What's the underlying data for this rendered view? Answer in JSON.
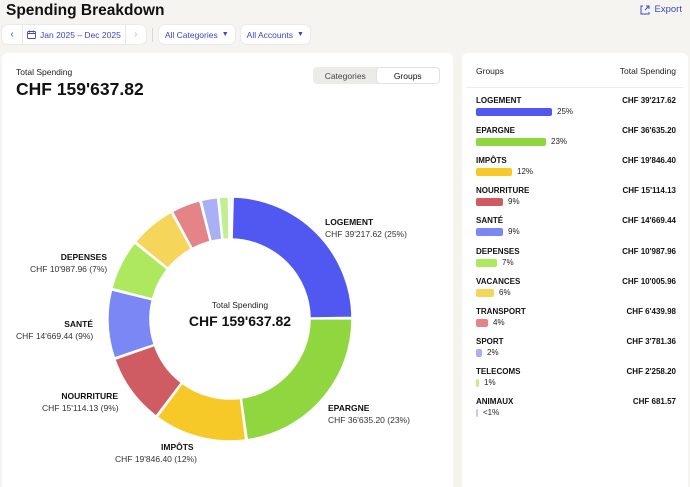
{
  "header": {
    "title": "Spending Breakdown",
    "export_label": "Export"
  },
  "filters": {
    "date_range": "Jan 2025 – Dec 2025",
    "categories": "All Categories",
    "accounts": "All Accounts"
  },
  "summary": {
    "total_label": "Total Spending",
    "total_value": "CHF 159'637.82",
    "toggle_categories": "Categories",
    "toggle_groups": "Groups",
    "active_toggle": "Groups"
  },
  "chart_data": {
    "type": "pie",
    "center_label": "Total Spending",
    "center_value": "CHF 159'637.82",
    "categories": [
      "LOGEMENT",
      "EPARGNE",
      "IMPÔTS",
      "NOURRITURE",
      "SANTÉ",
      "DEPENSES",
      "VACANCES",
      "TRANSPORT",
      "SPORT",
      "TELECOMS",
      "ANIMAUX"
    ],
    "values": [
      39217.62,
      36635.2,
      19846.4,
      15114.13,
      14669.44,
      10987.96,
      10005.96,
      6439.98,
      3781.36,
      2258.2,
      681.57
    ],
    "colors": [
      "#5158f2",
      "#8fd63f",
      "#f6c928",
      "#cf5b63",
      "#7a87f5",
      "#aee85f",
      "#f6d65a",
      "#e58486",
      "#a9b0f5",
      "#c1ef8f",
      "#c9c9ee"
    ],
    "labels": [
      {
        "name": "LOGEMENT",
        "detail": "CHF 39'217.62 (25%)"
      },
      {
        "name": "EPARGNE",
        "detail": "CHF 36'635.20 (23%)"
      },
      {
        "name": "IMPÔTS",
        "detail": "CHF 19'846.40 (12%)"
      },
      {
        "name": "NOURRITURE",
        "detail": "CHF 15'114.13 (9%)"
      },
      {
        "name": "SANTÉ",
        "detail": "CHF 14'669.44 (9%)"
      },
      {
        "name": "DEPENSES",
        "detail": "CHF 10'987.96 (7%)"
      }
    ]
  },
  "groups_table": {
    "header_group": "Groups",
    "header_total": "Total Spending",
    "rows": [
      {
        "name": "LOGEMENT",
        "amount": "CHF 39'217.62",
        "pct": "25%",
        "share": 0.25,
        "color": "#5158f2"
      },
      {
        "name": "EPARGNE",
        "amount": "CHF 36'635.20",
        "pct": "23%",
        "share": 0.23,
        "color": "#8fd63f"
      },
      {
        "name": "IMPÔTS",
        "amount": "CHF 19'846.40",
        "pct": "12%",
        "share": 0.12,
        "color": "#f6c928"
      },
      {
        "name": "NOURRITURE",
        "amount": "CHF 15'114.13",
        "pct": "9%",
        "share": 0.09,
        "color": "#cf5b63"
      },
      {
        "name": "SANTÉ",
        "amount": "CHF 14'669.44",
        "pct": "9%",
        "share": 0.09,
        "color": "#7a87f5"
      },
      {
        "name": "DEPENSES",
        "amount": "CHF 10'987.96",
        "pct": "7%",
        "share": 0.07,
        "color": "#aee85f"
      },
      {
        "name": "VACANCES",
        "amount": "CHF 10'005.96",
        "pct": "6%",
        "share": 0.06,
        "color": "#f6d65a"
      },
      {
        "name": "TRANSPORT",
        "amount": "CHF 6'439.98",
        "pct": "4%",
        "share": 0.04,
        "color": "#e58486"
      },
      {
        "name": "SPORT",
        "amount": "CHF 3'781.36",
        "pct": "2%",
        "share": 0.02,
        "color": "#a9b0f5"
      },
      {
        "name": "TELECOMS",
        "amount": "CHF 2'258.20",
        "pct": "1%",
        "share": 0.01,
        "color": "#c1ef8f"
      },
      {
        "name": "ANIMAUX",
        "amount": "CHF 681.57",
        "pct": "<1%",
        "share": 0.004,
        "color": "#c9c9ee"
      }
    ]
  },
  "icons": {
    "export": "export-icon",
    "calendar": "calendar-icon",
    "prev": "chevron-left-icon",
    "next": "chevron-right-icon",
    "dropdown": "caret-down-icon"
  }
}
